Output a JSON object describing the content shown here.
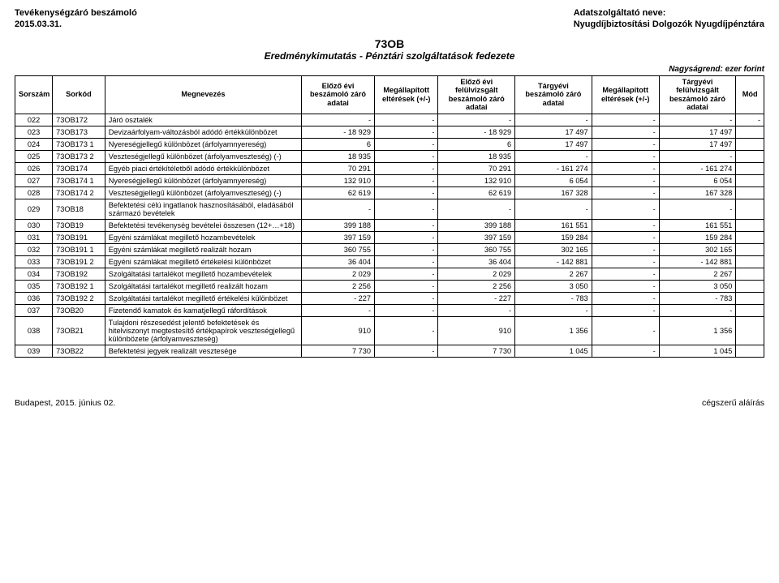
{
  "header": {
    "left_line1": "Tevékenységzáró beszámoló",
    "left_line2": "2015.03.31.",
    "right_line1": "Adatszolgáltató neve:",
    "right_line2": "Nyugdíjbiztosítási Dolgozók Nyugdíjpénztára"
  },
  "title": {
    "code": "73OB",
    "sub": "Eredménykimutatás - Pénztári szolgáltatások fedezete"
  },
  "scale_note": "Nagyságrend: ezer forint",
  "columns": {
    "widths": [
      40,
      56,
      210,
      78,
      68,
      82,
      82,
      72,
      82,
      30
    ],
    "headers": [
      "Sorszám",
      "Sorkód",
      "Megnevezés",
      "Előző évi beszámoló záró adatai",
      "Megállapított eltérések (+/-)",
      "Előző évi felülvizsgált beszámoló záró adatai",
      "Tárgyévi beszámoló záró adatai",
      "Megállapított eltérések (+/-)",
      "Tárgyévi felülvizsgált beszámoló záró adatai",
      "Mód"
    ]
  },
  "rows": [
    {
      "n": "022",
      "k": "73OB172",
      "d": "Járó osztalék",
      "c": [
        "-",
        "-",
        "-",
        "-",
        "-",
        "-",
        "-"
      ]
    },
    {
      "n": "023",
      "k": "73OB173",
      "d": "Devizaárfolyam-változásból adódó értékkülönbözet",
      "c": [
        "-           18 929",
        "-",
        "-           18 929",
        "17 497",
        "-",
        "17 497",
        ""
      ]
    },
    {
      "n": "024",
      "k": "73OB173 1",
      "d": "Nyereségjellegű különbözet (árfolyamnyereség)",
      "c": [
        "6",
        "-",
        "6",
        "17 497",
        "-",
        "17 497",
        ""
      ]
    },
    {
      "n": "025",
      "k": "73OB173 2",
      "d": "Veszteségjellegű különbözet (árfolyamveszteség) (-)",
      "c": [
        "18 935",
        "-",
        "18 935",
        "-",
        "-",
        "-",
        ""
      ]
    },
    {
      "n": "026",
      "k": "73OB174",
      "d": "Egyéb piaci értékítéletből adódó értékkülönbözet",
      "c": [
        "70 291",
        "-",
        "70 291",
        "-           161 274",
        "-",
        "-           161 274",
        ""
      ]
    },
    {
      "n": "027",
      "k": "73OB174 1",
      "d": "Nyereségjellegű különbözet (árfolyamnyereség)",
      "c": [
        "132 910",
        "-",
        "132 910",
        "6 054",
        "-",
        "6 054",
        ""
      ]
    },
    {
      "n": "028",
      "k": "73OB174 2",
      "d": "Veszteségjellegű különbözet (árfolyamveszteség) (-)",
      "c": [
        "62 619",
        "-",
        "62 619",
        "167 328",
        "-",
        "167 328",
        ""
      ]
    },
    {
      "n": "029",
      "k": "73OB18",
      "d": "Befektetési célú ingatlanok hasznosításából, eladásából származó bevételek",
      "c": [
        "-",
        "-",
        "-",
        "-",
        "-",
        "-",
        ""
      ]
    },
    {
      "n": "030",
      "k": "73OB19",
      "d": "Befektetési tevékenység bevételei összesen (12+…+18)",
      "c": [
        "399 188",
        "-",
        "399 188",
        "161 551",
        "-",
        "161 551",
        ""
      ]
    },
    {
      "n": "031",
      "k": "73OB191",
      "d": "Egyéni számlákat megillető hozambevételek",
      "c": [
        "397 159",
        "-",
        "397 159",
        "159 284",
        "-",
        "159 284",
        ""
      ]
    },
    {
      "n": "032",
      "k": "73OB191 1",
      "d": "Egyéni számlákat megillető realizált hozam",
      "c": [
        "360 755",
        "-",
        "360 755",
        "302 165",
        "-",
        "302 165",
        ""
      ]
    },
    {
      "n": "033",
      "k": "73OB191 2",
      "d": "Egyéni számlákat megillető értékelési különbözet",
      "c": [
        "36 404",
        "-",
        "36 404",
        "-           142 881",
        "-",
        "-           142 881",
        ""
      ]
    },
    {
      "n": "034",
      "k": "73OB192",
      "d": "Szolgáltatási tartalékot megillető hozambevételek",
      "c": [
        "2 029",
        "-",
        "2 029",
        "2 267",
        "-",
        "2 267",
        ""
      ]
    },
    {
      "n": "035",
      "k": "73OB192 1",
      "d": "Szolgáltatási tartalékot megillető realizált hozam",
      "c": [
        "2 256",
        "-",
        "2 256",
        "3 050",
        "-",
        "3 050",
        ""
      ]
    },
    {
      "n": "036",
      "k": "73OB192 2",
      "d": "Szolgáltatási tartalékot megillető értékelési különbözet",
      "c": [
        "-                227",
        "-",
        "-                227",
        "-                783",
        "-",
        "-                783",
        ""
      ]
    },
    {
      "n": "037",
      "k": "73OB20",
      "d": "Fizetendő kamatok és kamatjellegű ráfordítások",
      "c": [
        "-",
        "-",
        "-",
        "-",
        "-",
        "-",
        ""
      ]
    },
    {
      "n": "038",
      "k": "73OB21",
      "d": "Tulajdoni részesedést jelentő befektetések és hitelviszonyt megtestesítő értékpapírok veszteségjellegű különbözete (árfolyamveszteség)",
      "c": [
        "910",
        "-",
        "910",
        "1 356",
        "-",
        "1 356",
        ""
      ]
    },
    {
      "n": "039",
      "k": "73OB22",
      "d": "Befektetési jegyek realizált vesztesége",
      "c": [
        "7 730",
        "-",
        "7 730",
        "1 045",
        "-",
        "1 045",
        ""
      ]
    }
  ],
  "footer": {
    "left": "Budapest, 2015. június 02.",
    "right": "cégszerű aláírás"
  }
}
